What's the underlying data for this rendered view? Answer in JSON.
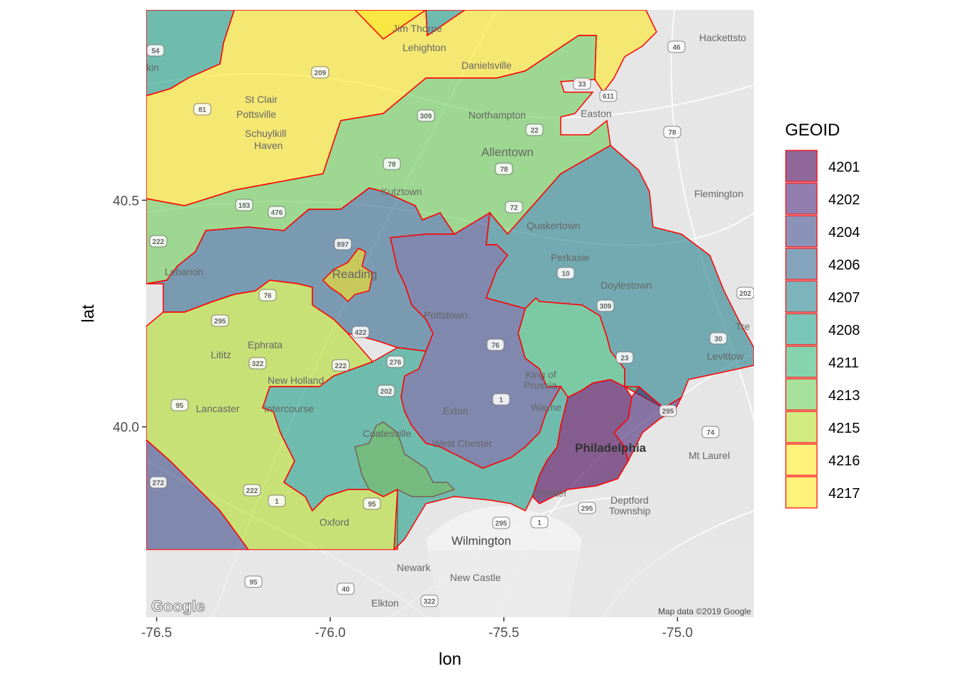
{
  "chart_data": {
    "type": "choropleth-map",
    "xlabel": "lon",
    "ylabel": "lat",
    "x_ticks": [
      "-76.5",
      "-76.0",
      "-75.5",
      "-75.0"
    ],
    "x_tick_values": [
      -76.5,
      -76.0,
      -75.5,
      -75.0
    ],
    "y_ticks": [
      "40.0",
      "40.5"
    ],
    "y_tick_values": [
      40.0,
      40.5
    ],
    "xlim": [
      -76.53,
      -74.78
    ],
    "ylim": [
      39.58,
      40.92
    ],
    "legend": {
      "title": "GEOID",
      "placement": "right",
      "items": [
        {
          "label": "4201",
          "color": "#440154"
        },
        {
          "label": "4202",
          "color": "#482878"
        },
        {
          "label": "4204",
          "color": "#3E4A89"
        },
        {
          "label": "4206",
          "color": "#31688E"
        },
        {
          "label": "4207",
          "color": "#26828E"
        },
        {
          "label": "4208",
          "color": "#1F9E89"
        },
        {
          "label": "4211",
          "color": "#35B779"
        },
        {
          "label": "4213",
          "color": "#6DCD59"
        },
        {
          "label": "4215",
          "color": "#B4DE2C"
        },
        {
          "label": "4216",
          "color": "#FDE725"
        },
        {
          "label": "4217",
          "color": "#FDE725"
        }
      ]
    },
    "boundary_color": "#ff0000",
    "fill_alpha": 0.6
  },
  "basemap": {
    "attribution": "Map data ©2019 Google",
    "logo": "Google",
    "places": [
      "Jim Thorpe",
      "Lehighton",
      "Danielsville",
      "Hackettsto",
      "St Clair",
      "Pottsville",
      "Schuylkill",
      "Haven",
      "Northampton",
      "Easton",
      "Allentown",
      "Kutztown",
      "Flemington",
      "Quakertown",
      "Perkasie",
      "Lebanon",
      "Reading",
      "Doylestown",
      "Pottstown",
      "Ephrata",
      "Lititz",
      "New Holland",
      "Levittow",
      "Tre",
      "King of",
      "Prussia",
      "Lancaster",
      "Intercourse",
      "Exton",
      "Wayne",
      "Coatesville",
      "West Chester",
      "Philadelphia",
      "Mt Laurel",
      "Chester",
      "Deptford",
      "Township",
      "Oxford",
      "Wilmington",
      "Newark",
      "New Castle",
      "Elkton",
      "kin"
    ],
    "shields": [
      "54",
      "46",
      "209",
      "81",
      "309",
      "33",
      "611",
      "22",
      "78",
      "78",
      "78",
      "183",
      "476",
      "72",
      "222",
      "897",
      "76",
      "295",
      "202",
      "309",
      "10",
      "422",
      "76",
      "276",
      "23",
      "222",
      "322",
      "202",
      "1",
      "30",
      "95",
      "295",
      "74",
      "272",
      "222",
      "1",
      "95",
      "295",
      "295",
      "1",
      "95",
      "40",
      "322"
    ]
  }
}
